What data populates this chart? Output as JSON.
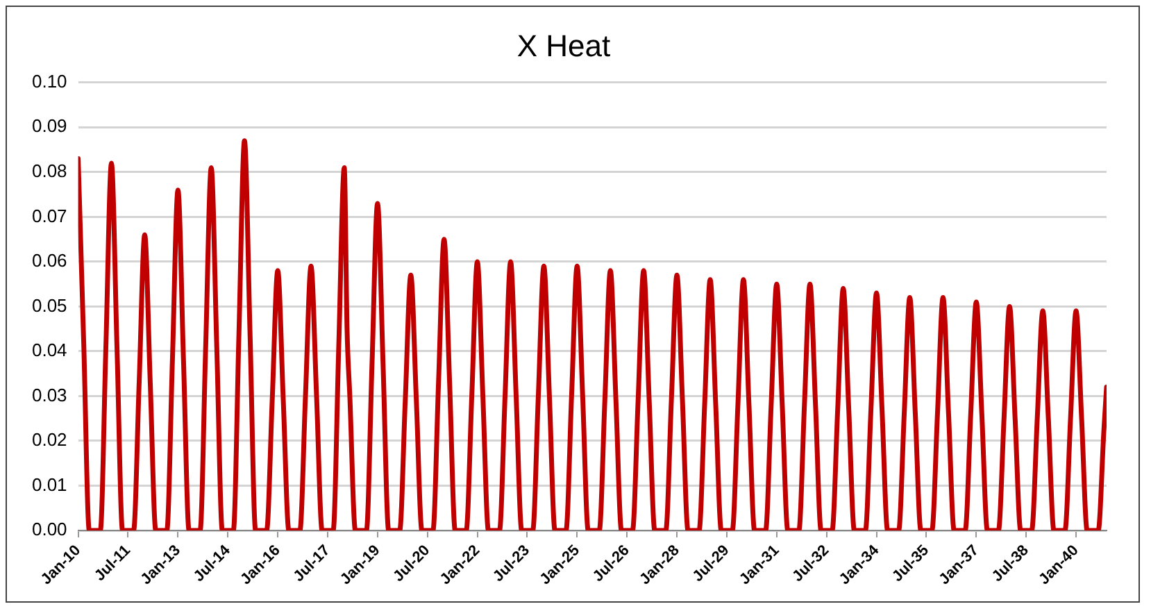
{
  "chart_data": {
    "type": "line",
    "title": "X Heat",
    "legend": false,
    "grid": "y",
    "marker": "none",
    "line_style": "solid",
    "xlim": [
      "2010-01",
      "2040-12"
    ],
    "xticks": [
      {
        "value": "2010-01",
        "label": "Jan-10"
      },
      {
        "value": "2011-07",
        "label": "Jul-11"
      },
      {
        "value": "2013-01",
        "label": "Jan-13"
      },
      {
        "value": "2014-07",
        "label": "Jul-14"
      },
      {
        "value": "2016-01",
        "label": "Jan-16"
      },
      {
        "value": "2017-07",
        "label": "Jul-17"
      },
      {
        "value": "2019-01",
        "label": "Jan-19"
      },
      {
        "value": "2020-07",
        "label": "Jul-20"
      },
      {
        "value": "2022-01",
        "label": "Jan-22"
      },
      {
        "value": "2023-07",
        "label": "Jul-23"
      },
      {
        "value": "2025-01",
        "label": "Jan-25"
      },
      {
        "value": "2026-07",
        "label": "Jul-26"
      },
      {
        "value": "2028-01",
        "label": "Jan-28"
      },
      {
        "value": "2029-07",
        "label": "Jul-29"
      },
      {
        "value": "2031-01",
        "label": "Jan-31"
      },
      {
        "value": "2032-07",
        "label": "Jul-32"
      },
      {
        "value": "2034-01",
        "label": "Jan-34"
      },
      {
        "value": "2035-07",
        "label": "Jul-35"
      },
      {
        "value": "2037-01",
        "label": "Jan-37"
      },
      {
        "value": "2038-07",
        "label": "Jul-38"
      },
      {
        "value": "2040-01",
        "label": "Jan-40"
      }
    ],
    "ylim": [
      0,
      0.1
    ],
    "yticks": [
      {
        "value": 0,
        "label": "0.00"
      },
      {
        "value": 0.01,
        "label": "0.01"
      },
      {
        "value": 0.02,
        "label": "0.02"
      },
      {
        "value": 0.03,
        "label": "0.03"
      },
      {
        "value": 0.04,
        "label": "0.04"
      },
      {
        "value": 0.05,
        "label": "0.05"
      },
      {
        "value": 0.06,
        "label": "0.06"
      },
      {
        "value": 0.07,
        "label": "0.07"
      },
      {
        "value": 0.08,
        "label": "0.08"
      },
      {
        "value": 0.09,
        "label": "0.09"
      },
      {
        "value": 0.1,
        "label": "0.10"
      }
    ],
    "series": [
      {
        "color": "#c00000",
        "x": [
          "2010-01",
          "2010-03",
          "2010-05",
          "2010-09",
          "2010-11",
          "2011-01",
          "2011-03",
          "2011-05",
          "2011-09",
          "2011-11",
          "2012-01",
          "2012-03",
          "2012-05",
          "2012-09",
          "2012-11",
          "2013-01",
          "2013-03",
          "2013-05",
          "2013-09",
          "2013-11",
          "2014-01",
          "2014-03",
          "2014-05",
          "2014-09",
          "2014-11",
          "2015-01",
          "2015-03",
          "2015-05",
          "2015-09",
          "2015-11",
          "2016-01",
          "2016-03",
          "2016-05",
          "2016-09",
          "2016-11",
          "2017-01",
          "2017-03",
          "2017-05",
          "2017-09",
          "2017-11",
          "2018-01",
          "2018-02",
          "2018-03",
          "2018-05",
          "2018-09",
          "2018-11",
          "2019-01",
          "2019-03",
          "2019-05",
          "2019-09",
          "2019-11",
          "2020-01",
          "2020-03",
          "2020-05",
          "2020-09",
          "2020-11",
          "2021-01",
          "2021-03",
          "2021-05",
          "2021-09",
          "2021-11",
          "2022-01",
          "2022-03",
          "2022-05",
          "2022-09",
          "2022-11",
          "2023-01",
          "2023-03",
          "2023-05",
          "2023-09",
          "2023-11",
          "2024-01",
          "2024-03",
          "2024-05",
          "2024-09",
          "2024-11",
          "2025-01",
          "2025-03",
          "2025-05",
          "2025-09",
          "2025-11",
          "2026-01",
          "2026-03",
          "2026-05",
          "2026-09",
          "2026-11",
          "2027-01",
          "2027-03",
          "2027-05",
          "2027-09",
          "2027-11",
          "2028-01",
          "2028-03",
          "2028-05",
          "2028-09",
          "2028-11",
          "2029-01",
          "2029-03",
          "2029-05",
          "2029-09",
          "2029-11",
          "2030-01",
          "2030-03",
          "2030-05",
          "2030-09",
          "2030-11",
          "2031-01",
          "2031-03",
          "2031-05",
          "2031-09",
          "2031-11",
          "2032-01",
          "2032-03",
          "2032-05",
          "2032-09",
          "2032-11",
          "2033-01",
          "2033-03",
          "2033-05",
          "2033-09",
          "2033-11",
          "2034-01",
          "2034-03",
          "2034-05",
          "2034-09",
          "2034-11",
          "2035-01",
          "2035-03",
          "2035-05",
          "2035-09",
          "2035-11",
          "2036-01",
          "2036-03",
          "2036-05",
          "2036-09",
          "2036-11",
          "2037-01",
          "2037-03",
          "2037-05",
          "2037-09",
          "2037-11",
          "2038-01",
          "2038-03",
          "2038-05",
          "2038-09",
          "2038-11",
          "2039-01",
          "2039-03",
          "2039-05",
          "2039-09",
          "2039-11",
          "2040-01",
          "2040-03",
          "2040-05",
          "2040-09",
          "2040-11",
          "2040-12"
        ],
        "values": [
          0.083,
          0.042,
          0,
          0,
          0.041,
          0.082,
          0.041,
          0,
          0,
          0.033,
          0.066,
          0.033,
          0,
          0,
          0.038,
          0.076,
          0.038,
          0,
          0,
          0.041,
          0.081,
          0.041,
          0,
          0,
          0.044,
          0.087,
          0.044,
          0,
          0,
          0.029,
          0.058,
          0.029,
          0,
          0,
          0.03,
          0.059,
          0.03,
          0,
          0,
          0.041,
          0.081,
          0.045,
          0.03,
          0,
          0,
          0.037,
          0.073,
          0.037,
          0,
          0,
          0.029,
          0.057,
          0.029,
          0,
          0,
          0.033,
          0.065,
          0.033,
          0,
          0,
          0.03,
          0.06,
          0.03,
          0,
          0,
          0.03,
          0.06,
          0.03,
          0,
          0,
          0.03,
          0.059,
          0.03,
          0,
          0,
          0.03,
          0.059,
          0.03,
          0,
          0,
          0.029,
          0.058,
          0.029,
          0,
          0,
          0.029,
          0.058,
          0.029,
          0,
          0,
          0.029,
          0.057,
          0.029,
          0,
          0,
          0.028,
          0.056,
          0.028,
          0,
          0,
          0.028,
          0.056,
          0.028,
          0,
          0,
          0.028,
          0.055,
          0.028,
          0,
          0,
          0.028,
          0.055,
          0.028,
          0,
          0,
          0.027,
          0.054,
          0.027,
          0,
          0,
          0.027,
          0.053,
          0.027,
          0,
          0,
          0.026,
          0.052,
          0.026,
          0,
          0,
          0.026,
          0.052,
          0.026,
          0,
          0,
          0.026,
          0.051,
          0.026,
          0,
          0,
          0.025,
          0.05,
          0.025,
          0,
          0,
          0.025,
          0.049,
          0.025,
          0,
          0,
          0.025,
          0.049,
          0.025,
          0,
          0,
          0.022,
          0.032
        ]
      }
    ]
  }
}
